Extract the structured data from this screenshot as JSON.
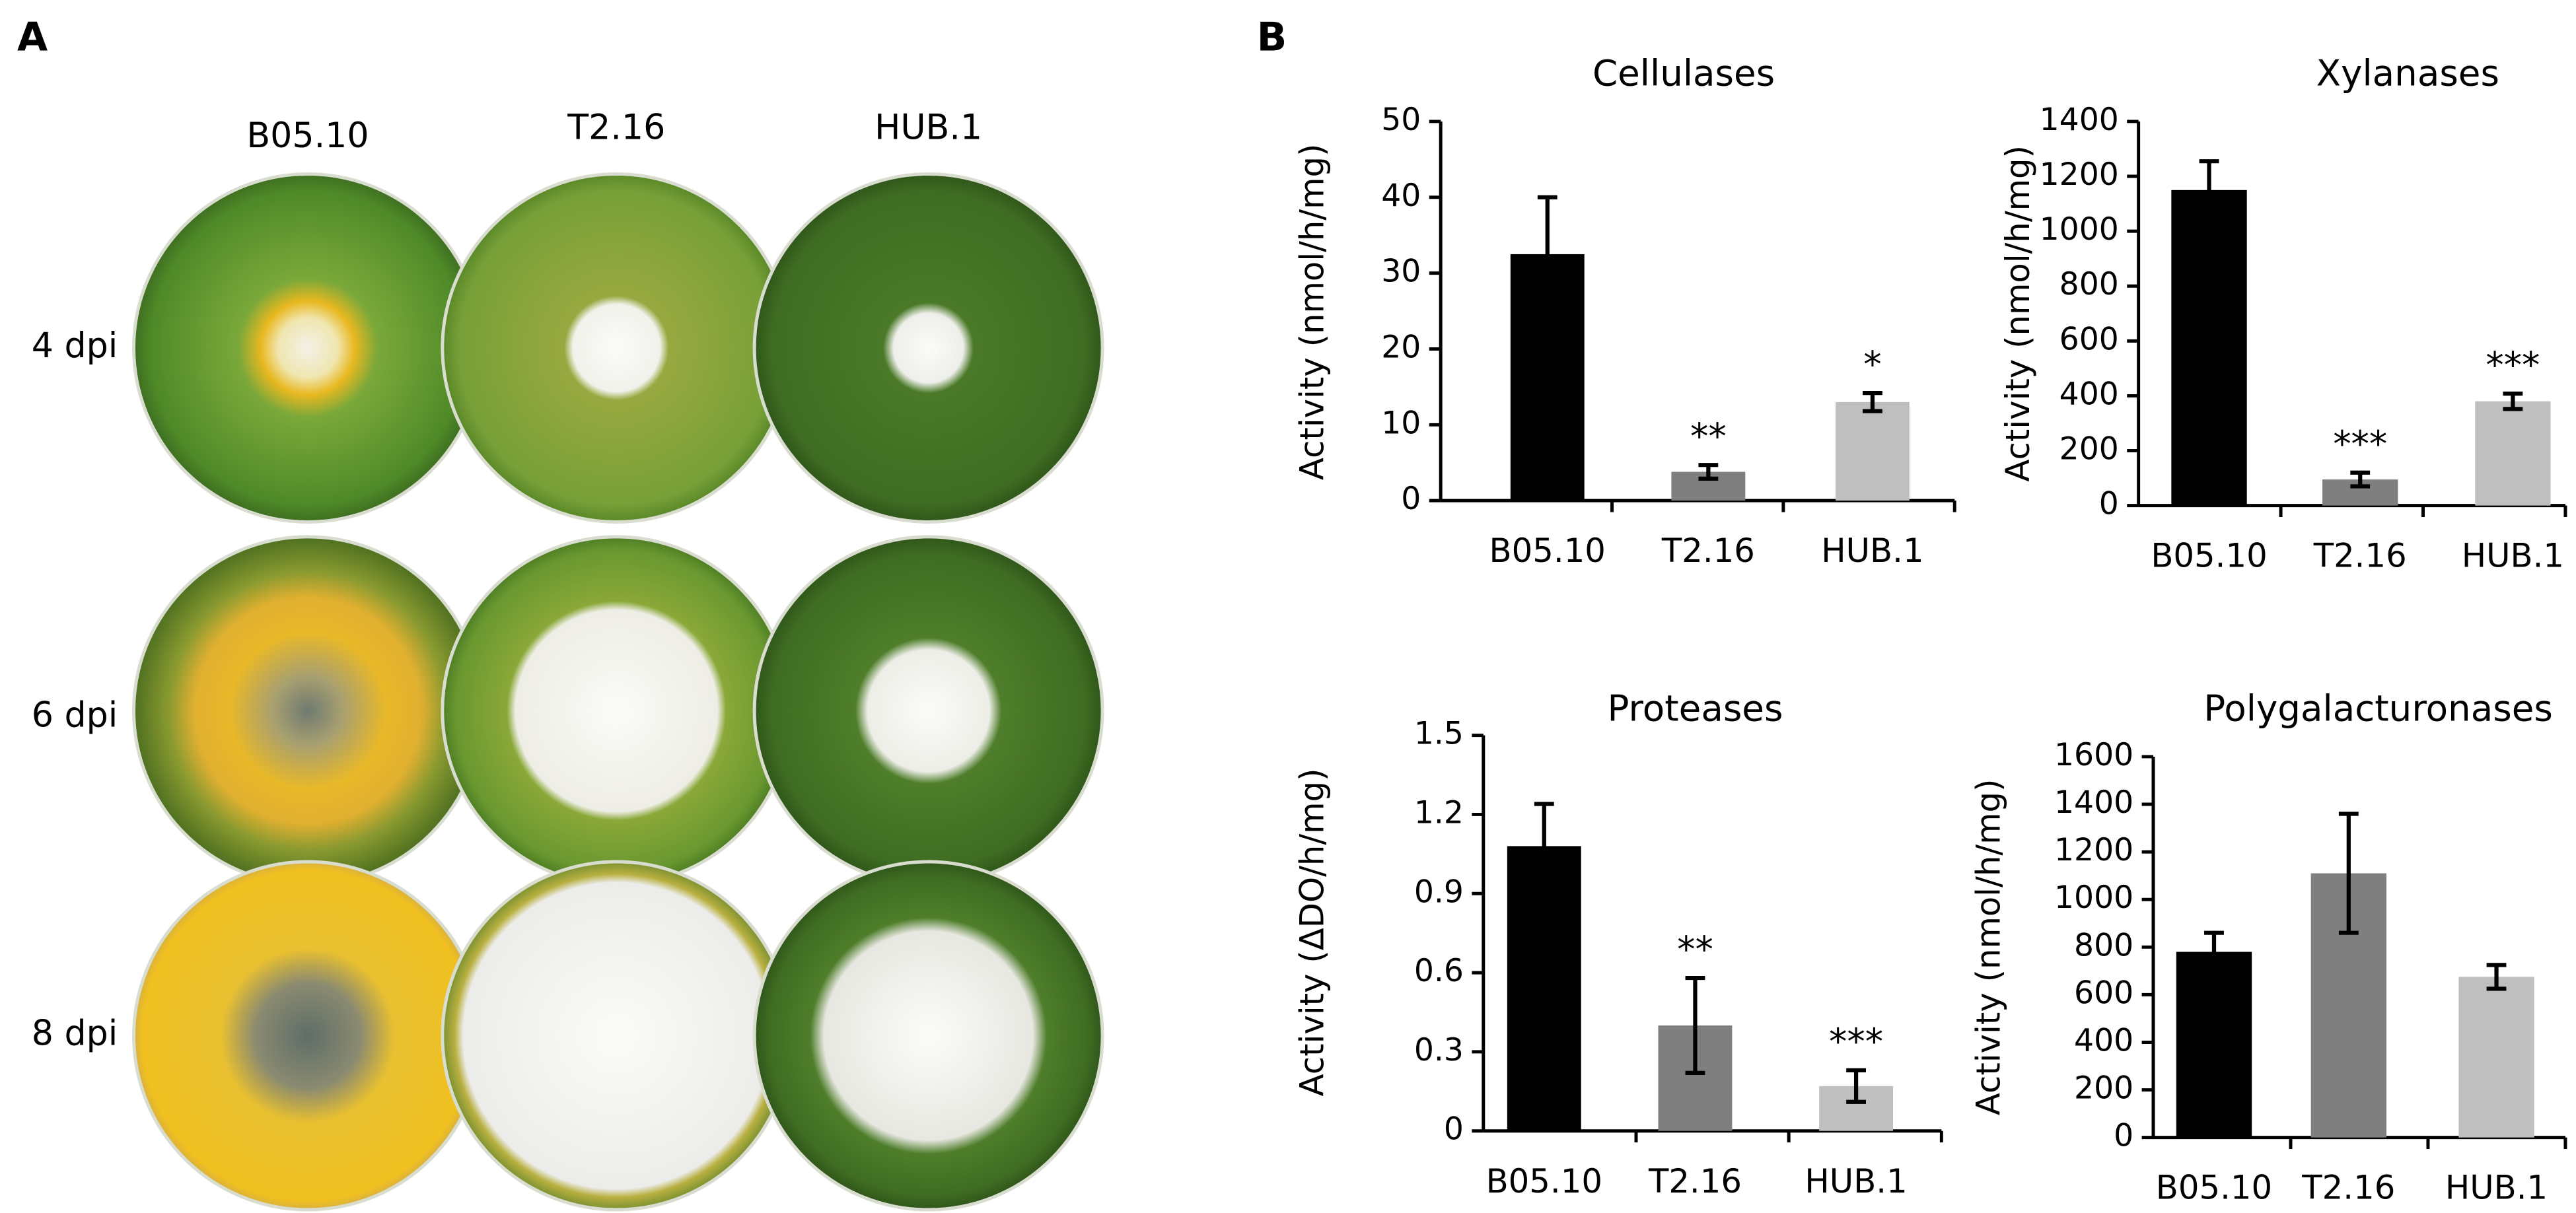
{
  "panel_a": {
    "label": "A",
    "columns": [
      "B05.10",
      "T2.16",
      "HUB.1"
    ],
    "rows": [
      "4 dpi",
      "6 dpi",
      "8 dpi"
    ]
  },
  "panel_b": {
    "label": "B"
  },
  "chart_data": [
    {
      "type": "bar",
      "title": "Cellulases",
      "y_label": "Activity (nmol/h/mg)",
      "categories": [
        "B05.10",
        "T2.16",
        "HUB.1"
      ],
      "values": [
        32.5,
        3.8,
        13
      ],
      "errors": [
        7.5,
        0.9,
        1.2
      ],
      "significance": [
        null,
        "**",
        "*"
      ],
      "colors": [
        "#000000",
        "#7f7f7f",
        "#bfbfbf"
      ],
      "ylim": [
        0,
        50
      ],
      "yticks": [
        0,
        10,
        20,
        30,
        40,
        50
      ]
    },
    {
      "type": "bar",
      "title": "Xylanases",
      "y_label": "Activity (nmol/h/mg)",
      "categories": [
        "B05.10",
        "T2.16",
        "HUB.1"
      ],
      "values": [
        1150,
        95,
        380
      ],
      "errors": [
        105,
        25,
        28
      ],
      "significance": [
        null,
        "***",
        "***"
      ],
      "colors": [
        "#000000",
        "#7f7f7f",
        "#bfbfbf"
      ],
      "ylim": [
        0,
        1400
      ],
      "yticks": [
        0,
        200,
        400,
        600,
        800,
        1000,
        1200,
        1400
      ]
    },
    {
      "type": "bar",
      "title": "Proteases",
      "y_label": "Activity (ΔDO/h/mg)",
      "categories": [
        "B05.10",
        "T2.16",
        "HUB.1"
      ],
      "values": [
        1.08,
        0.4,
        0.17
      ],
      "errors": [
        0.16,
        0.18,
        0.06
      ],
      "significance": [
        null,
        "**",
        "***"
      ],
      "colors": [
        "#000000",
        "#7f7f7f",
        "#bfbfbf"
      ],
      "ylim": [
        0,
        1.5
      ],
      "yticks": [
        0,
        0.3,
        0.6,
        0.9,
        1.2,
        1.5
      ]
    },
    {
      "type": "bar",
      "title": "Polygalacturonases",
      "y_label": "Activity (nmol/h/mg)",
      "categories": [
        "B05.10",
        "T2.16",
        "HUB.1"
      ],
      "values": [
        780,
        1110,
        675
      ],
      "errors": [
        80,
        250,
        50
      ],
      "colors": [
        "#000000",
        "#7f7f7f",
        "#bfbfbf"
      ],
      "ylim": [
        0,
        1600
      ],
      "yticks": [
        0,
        200,
        400,
        600,
        800,
        1000,
        1200,
        1400,
        1600
      ]
    }
  ]
}
